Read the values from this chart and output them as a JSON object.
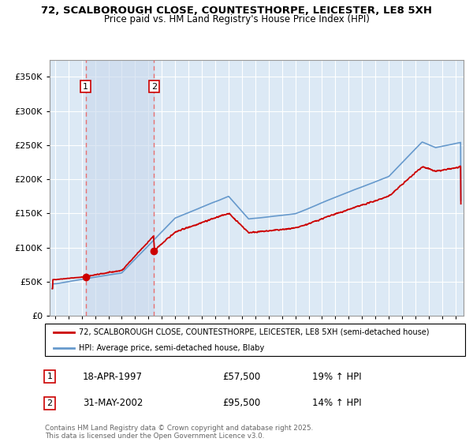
{
  "title_line1": "72, SCALBOROUGH CLOSE, COUNTESTHORPE, LEICESTER, LE8 5XH",
  "title_line2": "Price paid vs. HM Land Registry's House Price Index (HPI)",
  "ylim": [
    0,
    375000
  ],
  "yticks": [
    0,
    50000,
    100000,
    150000,
    200000,
    250000,
    300000,
    350000
  ],
  "ytick_labels": [
    "£0",
    "£50K",
    "£100K",
    "£150K",
    "£200K",
    "£250K",
    "£300K",
    "£350K"
  ],
  "xstart": 1994.6,
  "xend": 2025.6,
  "background_color": "#ffffff",
  "plot_bg_color": "#dce9f5",
  "grid_color": "#ffffff",
  "sale1_date": 1997.29,
  "sale1_price": 57500,
  "sale1_label": "1",
  "sale2_date": 2002.41,
  "sale2_price": 95500,
  "sale2_label": "2",
  "legend_line1": "72, SCALBOROUGH CLOSE, COUNTESTHORPE, LEICESTER, LE8 5XH (semi-detached house)",
  "legend_line2": "HPI: Average price, semi-detached house, Blaby",
  "annotation1_date": "18-APR-1997",
  "annotation1_price": "£57,500",
  "annotation1_hpi": "19% ↑ HPI",
  "annotation2_date": "31-MAY-2002",
  "annotation2_price": "£95,500",
  "annotation2_hpi": "14% ↑ HPI",
  "copyright_text": "Contains HM Land Registry data © Crown copyright and database right 2025.\nThis data is licensed under the Open Government Licence v3.0.",
  "line_color_price": "#cc0000",
  "line_color_hpi": "#6699cc",
  "vline_color": "#e87070",
  "marker_color": "#cc0000",
  "shade_color": "#c8d8ec"
}
